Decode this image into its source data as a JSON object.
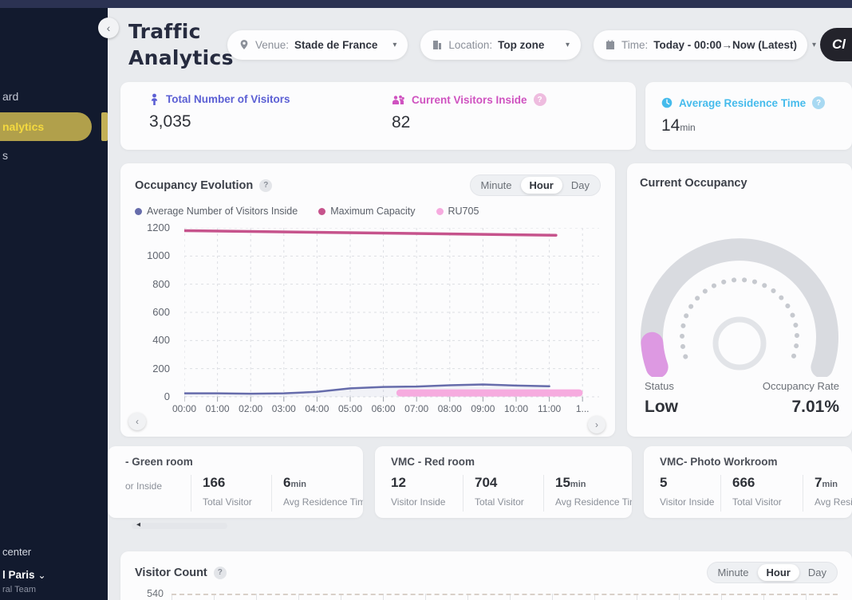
{
  "app": {
    "title_line1": "Traffic",
    "title_line2": "Analytics",
    "brand_button": "Cl"
  },
  "header": {
    "filters": {
      "venue": {
        "label": "Venue:",
        "value": "Stade de France"
      },
      "location": {
        "label": "Location:",
        "value": "Top zone"
      },
      "time": {
        "label": "Time:",
        "value": "Today - 00:00→Now (Latest)"
      }
    }
  },
  "sidebar": {
    "items": [
      {
        "label": "ard",
        "active": false
      },
      {
        "label": "nalytics",
        "active": true
      },
      {
        "label": "s",
        "active": false
      }
    ],
    "footer": {
      "help": "center",
      "org": "l Paris",
      "team": "ral Team"
    }
  },
  "stats": {
    "total": {
      "label": "Total Number of Visitors",
      "value": "3,035",
      "color": "#5b5fd4"
    },
    "inside": {
      "label": "Current Visitors Inside",
      "value": "82",
      "color": "#cf52c0"
    },
    "residence": {
      "label": "Average Residence Time",
      "value": "14",
      "unit": "min",
      "color": "#45bbec"
    }
  },
  "occupancy": {
    "title": "Occupancy Evolution",
    "toggle": {
      "options": [
        "Minute",
        "Hour",
        "Day"
      ],
      "selected": "Hour"
    },
    "chart_data": {
      "type": "line",
      "x_labels": [
        "00:00",
        "01:00",
        "02:00",
        "03:00",
        "04:00",
        "05:00",
        "06:00",
        "07:00",
        "08:00",
        "09:00",
        "10:00",
        "11:00",
        "1..."
      ],
      "y_ticks": [
        0,
        200,
        400,
        600,
        800,
        1000,
        1200
      ],
      "ylim": [
        0,
        1200
      ],
      "grid": true,
      "legend_position": "top",
      "series": [
        {
          "name": "Average Number of Visitors Inside",
          "color": "#666cab",
          "width": 2.5,
          "area": true,
          "x": [
            0,
            1,
            2,
            3,
            4,
            5,
            6,
            7,
            8,
            9,
            10,
            11
          ],
          "values": [
            25,
            25,
            22,
            25,
            35,
            60,
            70,
            73,
            82,
            88,
            80,
            75
          ]
        },
        {
          "name": "Maximum Capacity",
          "color": "#c6538c",
          "width": 3.5,
          "x": [
            0,
            11.2
          ],
          "values": [
            1180,
            1148
          ]
        },
        {
          "name": "RU705",
          "color": "#f6abdf",
          "width": 9,
          "x": [
            6.5,
            11.9
          ],
          "values": [
            28,
            28
          ]
        }
      ]
    }
  },
  "gauge": {
    "title": "Current Occupancy",
    "status_label": "Status",
    "status_value": "Low",
    "rate_label": "Occupancy Rate",
    "rate_value": "7.01%",
    "accent_color": "#dd99e2",
    "track_color": "#d9dbe0"
  },
  "rooms": [
    {
      "name": "- Green room",
      "stats": [
        {
          "value": "",
          "label": "or Inside"
        },
        {
          "value": "166",
          "label": "Total Visitor"
        },
        {
          "value": "6",
          "unit": "min",
          "label": "Avg Residence Time"
        }
      ]
    },
    {
      "name": "VMC - Red room",
      "stats": [
        {
          "value": "12",
          "label": "Visitor Inside"
        },
        {
          "value": "704",
          "label": "Total Visitor"
        },
        {
          "value": "15",
          "unit": "min",
          "label": "Avg Residence Time"
        }
      ]
    },
    {
      "name": "VMC- Photo Workroom",
      "stats": [
        {
          "value": "5",
          "label": "Visitor Inside"
        },
        {
          "value": "666",
          "label": "Total Visitor"
        },
        {
          "value": "7",
          "unit": "min",
          "label": "Avg Residence Time"
        }
      ]
    }
  ],
  "visitor_count": {
    "title": "Visitor Count",
    "toggle": {
      "options": [
        "Minute",
        "Hour",
        "Day"
      ],
      "selected": "Hour"
    },
    "chart_data": {
      "type": "bar",
      "y_tick_visible": "540",
      "note_visible_portion": "top gridline only"
    }
  }
}
